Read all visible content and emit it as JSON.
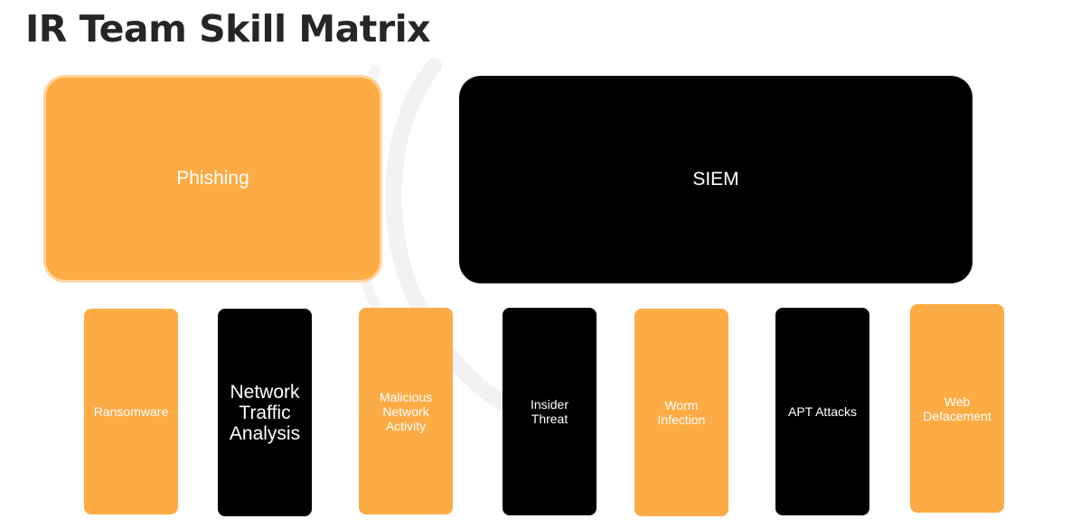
{
  "title": "IR Team Skill Matrix",
  "colors": {
    "orange": "#fdab45",
    "black": "#000000",
    "text": "#ffffff",
    "title": "#262626"
  },
  "top_boxes": [
    {
      "label": "Phishing",
      "color": "orange"
    },
    {
      "label": "SIEM",
      "color": "black"
    }
  ],
  "bottom_boxes": [
    {
      "label": "Ransomware",
      "color": "orange"
    },
    {
      "label": "Network Traffic Analysis",
      "lines": [
        "Network",
        "Traffic",
        "Analysis"
      ],
      "color": "black"
    },
    {
      "label": "Malicious Network Activity",
      "lines": [
        "Malicious",
        "Network",
        "Activity"
      ],
      "color": "orange"
    },
    {
      "label": "Insider Threat",
      "lines": [
        "Insider",
        "Threat"
      ],
      "color": "black"
    },
    {
      "label": "Worm Infection",
      "lines": [
        "Worm",
        "Infection"
      ],
      "color": "orange"
    },
    {
      "label": "APT Attacks",
      "color": "black"
    },
    {
      "label": "Web Defacement",
      "lines": [
        "Web",
        "Defacement"
      ],
      "color": "orange"
    }
  ]
}
